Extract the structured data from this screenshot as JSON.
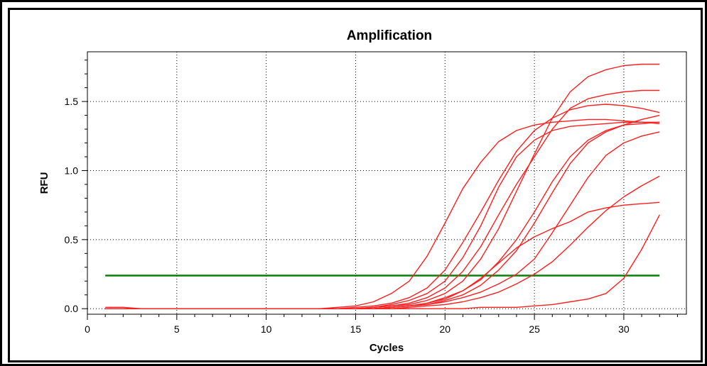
{
  "colors": {
    "curve": "#ff1f1f",
    "threshold": "#0a7f0a",
    "grid": "#000000",
    "frame": "#000000",
    "background": "#ffffff"
  },
  "chart_data": {
    "type": "line",
    "title": "Amplification",
    "xlabel": "Cycles",
    "ylabel": "RFU",
    "xlim": [
      0,
      33.5
    ],
    "ylim": [
      -0.04,
      1.86
    ],
    "xticks": [
      0,
      5,
      10,
      15,
      20,
      25,
      30
    ],
    "yticks": [
      0.0,
      0.5,
      1.0,
      1.5
    ],
    "xtick_labels": [
      "0",
      "5",
      "10",
      "15",
      "20",
      "25",
      "30"
    ],
    "ytick_labels": [
      "0.0",
      "0.5",
      "1.0",
      "1.5"
    ],
    "grid": true,
    "legend": "none",
    "threshold": {
      "y": 0.24,
      "x_range": [
        1,
        32
      ]
    },
    "series": [
      {
        "x": [
          1,
          2,
          3,
          4,
          5,
          6,
          7,
          8,
          9,
          10,
          11,
          12,
          13,
          14,
          15,
          16,
          17,
          18,
          19,
          20,
          21,
          22,
          23,
          24,
          25,
          26,
          27,
          28,
          29,
          30,
          31,
          32
        ],
        "y": [
          0.0,
          0.0,
          0.0,
          0.0,
          0.0,
          0.0,
          0.0,
          0.0,
          0.0,
          0.0,
          0.0,
          0.0,
          0.0,
          0.01,
          0.02,
          0.05,
          0.11,
          0.2,
          0.38,
          0.62,
          0.87,
          1.06,
          1.21,
          1.29,
          1.33,
          1.35,
          1.36,
          1.37,
          1.37,
          1.36,
          1.35,
          1.34
        ]
      },
      {
        "x": [
          1,
          2,
          3,
          4,
          5,
          6,
          7,
          8,
          9,
          10,
          11,
          12,
          13,
          14,
          15,
          16,
          17,
          18,
          19,
          20,
          21,
          22,
          23,
          24,
          25,
          26,
          27,
          28,
          29,
          30,
          31,
          32
        ],
        "y": [
          0.0,
          0.0,
          0.0,
          0.0,
          0.0,
          0.0,
          0.0,
          0.0,
          0.0,
          0.0,
          0.0,
          0.0,
          0.0,
          0.0,
          0.01,
          0.02,
          0.04,
          0.08,
          0.15,
          0.28,
          0.48,
          0.7,
          0.93,
          1.14,
          1.29,
          1.38,
          1.44,
          1.47,
          1.48,
          1.47,
          1.45,
          1.42
        ]
      },
      {
        "x": [
          1,
          2,
          3,
          4,
          5,
          6,
          7,
          8,
          9,
          10,
          11,
          12,
          13,
          14,
          15,
          16,
          17,
          18,
          19,
          20,
          21,
          22,
          23,
          24,
          25,
          26,
          27,
          28,
          29,
          30,
          31,
          32
        ],
        "y": [
          0.0,
          0.0,
          0.0,
          0.0,
          0.0,
          0.0,
          0.0,
          0.0,
          0.0,
          0.0,
          0.0,
          0.0,
          0.0,
          0.0,
          0.0,
          0.01,
          0.03,
          0.06,
          0.11,
          0.2,
          0.37,
          0.6,
          0.88,
          1.1,
          1.22,
          1.29,
          1.32,
          1.33,
          1.34,
          1.35,
          1.35,
          1.35
        ]
      },
      {
        "x": [
          1,
          2,
          3,
          4,
          5,
          6,
          7,
          8,
          9,
          10,
          11,
          12,
          13,
          14,
          15,
          16,
          17,
          18,
          19,
          20,
          21,
          22,
          23,
          24,
          25,
          26,
          27,
          28,
          29,
          30,
          31,
          32
        ],
        "y": [
          0.0,
          0.0,
          0.0,
          0.0,
          0.0,
          0.0,
          0.0,
          0.0,
          0.0,
          0.0,
          0.0,
          0.0,
          0.0,
          0.0,
          0.0,
          0.01,
          0.02,
          0.04,
          0.08,
          0.15,
          0.27,
          0.45,
          0.68,
          0.9,
          1.1,
          1.3,
          1.45,
          1.52,
          1.55,
          1.57,
          1.58,
          1.58
        ]
      },
      {
        "x": [
          1,
          2,
          3,
          4,
          5,
          6,
          7,
          8,
          9,
          10,
          11,
          12,
          13,
          14,
          15,
          16,
          17,
          18,
          19,
          20,
          21,
          22,
          23,
          24,
          25,
          26,
          27,
          28,
          29,
          30,
          31,
          32
        ],
        "y": [
          0.0,
          0.0,
          0.0,
          0.0,
          0.0,
          0.0,
          0.0,
          0.0,
          0.0,
          0.0,
          0.0,
          0.0,
          0.0,
          0.0,
          0.0,
          0.01,
          0.02,
          0.03,
          0.06,
          0.11,
          0.2,
          0.36,
          0.58,
          0.85,
          1.12,
          1.38,
          1.57,
          1.68,
          1.73,
          1.76,
          1.77,
          1.77
        ]
      },
      {
        "x": [
          1,
          2,
          3,
          4,
          5,
          6,
          7,
          8,
          9,
          10,
          11,
          12,
          13,
          14,
          15,
          16,
          17,
          18,
          19,
          20,
          21,
          22,
          23,
          24,
          25,
          26,
          27,
          28,
          29,
          30,
          31,
          32
        ],
        "y": [
          0.0,
          0.0,
          0.0,
          0.0,
          0.0,
          0.0,
          0.0,
          0.0,
          0.0,
          0.0,
          0.0,
          0.0,
          0.0,
          0.0,
          0.0,
          0.0,
          0.01,
          0.02,
          0.04,
          0.08,
          0.13,
          0.21,
          0.34,
          0.5,
          0.7,
          0.92,
          1.1,
          1.22,
          1.29,
          1.33,
          1.34,
          1.35
        ]
      },
      {
        "x": [
          1,
          2,
          3,
          4,
          5,
          6,
          7,
          8,
          9,
          10,
          11,
          12,
          13,
          14,
          15,
          16,
          17,
          18,
          19,
          20,
          21,
          22,
          23,
          24,
          25,
          26,
          27,
          28,
          29,
          30,
          31,
          32
        ],
        "y": [
          0.0,
          0.0,
          0.0,
          0.0,
          0.0,
          0.0,
          0.0,
          0.0,
          0.0,
          0.0,
          0.0,
          0.0,
          0.0,
          0.0,
          0.0,
          0.0,
          0.01,
          0.02,
          0.03,
          0.06,
          0.1,
          0.17,
          0.28,
          0.42,
          0.62,
          0.84,
          1.05,
          1.2,
          1.28,
          1.33,
          1.37,
          1.4
        ]
      },
      {
        "x": [
          1,
          2,
          3,
          4,
          5,
          6,
          7,
          8,
          9,
          10,
          11,
          12,
          13,
          14,
          15,
          16,
          17,
          18,
          19,
          20,
          21,
          22,
          23,
          24,
          25,
          26,
          27,
          28,
          29,
          30,
          31,
          32
        ],
        "y": [
          0.0,
          0.0,
          0.0,
          0.0,
          0.0,
          0.0,
          0.0,
          0.0,
          0.0,
          0.0,
          0.0,
          0.0,
          0.0,
          0.0,
          0.0,
          0.0,
          0.01,
          0.02,
          0.03,
          0.05,
          0.08,
          0.12,
          0.18,
          0.25,
          0.36,
          0.55,
          0.75,
          0.95,
          1.11,
          1.2,
          1.25,
          1.28
        ]
      },
      {
        "x": [
          1,
          2,
          3,
          4,
          5,
          6,
          7,
          8,
          9,
          10,
          11,
          12,
          13,
          14,
          15,
          16,
          17,
          18,
          19,
          20,
          21,
          22,
          23,
          24,
          25,
          26,
          27,
          28,
          29,
          30,
          31,
          32
        ],
        "y": [
          0.0,
          0.0,
          0.0,
          0.0,
          0.0,
          0.0,
          0.0,
          0.0,
          0.0,
          0.0,
          0.0,
          0.0,
          0.0,
          0.0,
          0.0,
          0.0,
          0.01,
          0.02,
          0.04,
          0.07,
          0.13,
          0.22,
          0.33,
          0.44,
          0.52,
          0.58,
          0.63,
          0.7,
          0.73,
          0.75,
          0.76,
          0.77
        ]
      },
      {
        "x": [
          1,
          2,
          3,
          4,
          5,
          6,
          7,
          8,
          9,
          10,
          11,
          12,
          13,
          14,
          15,
          16,
          17,
          18,
          19,
          20,
          21,
          22,
          23,
          24,
          25,
          26,
          27,
          28,
          29,
          30,
          31,
          32
        ],
        "y": [
          0.0,
          0.0,
          0.0,
          0.0,
          0.0,
          0.0,
          0.0,
          0.0,
          0.0,
          0.0,
          0.0,
          0.0,
          0.0,
          0.0,
          0.0,
          0.0,
          0.0,
          0.01,
          0.02,
          0.03,
          0.05,
          0.08,
          0.12,
          0.18,
          0.25,
          0.34,
          0.46,
          0.59,
          0.71,
          0.81,
          0.89,
          0.96
        ]
      },
      {
        "x": [
          1,
          2,
          3,
          4,
          5,
          6,
          7,
          8,
          9,
          10,
          11,
          12,
          13,
          14,
          15,
          16,
          17,
          18,
          19,
          20,
          21,
          22,
          23,
          24,
          25,
          26,
          27,
          28,
          29,
          30,
          31,
          32
        ],
        "y": [
          0.01,
          0.01,
          0.0,
          0.0,
          0.0,
          0.0,
          0.0,
          0.0,
          0.0,
          0.0,
          0.0,
          0.0,
          0.0,
          0.0,
          0.0,
          0.0,
          0.0,
          0.0,
          0.0,
          0.0,
          0.0,
          0.01,
          0.01,
          0.01,
          0.02,
          0.03,
          0.05,
          0.07,
          0.11,
          0.22,
          0.43,
          0.68
        ]
      }
    ]
  }
}
